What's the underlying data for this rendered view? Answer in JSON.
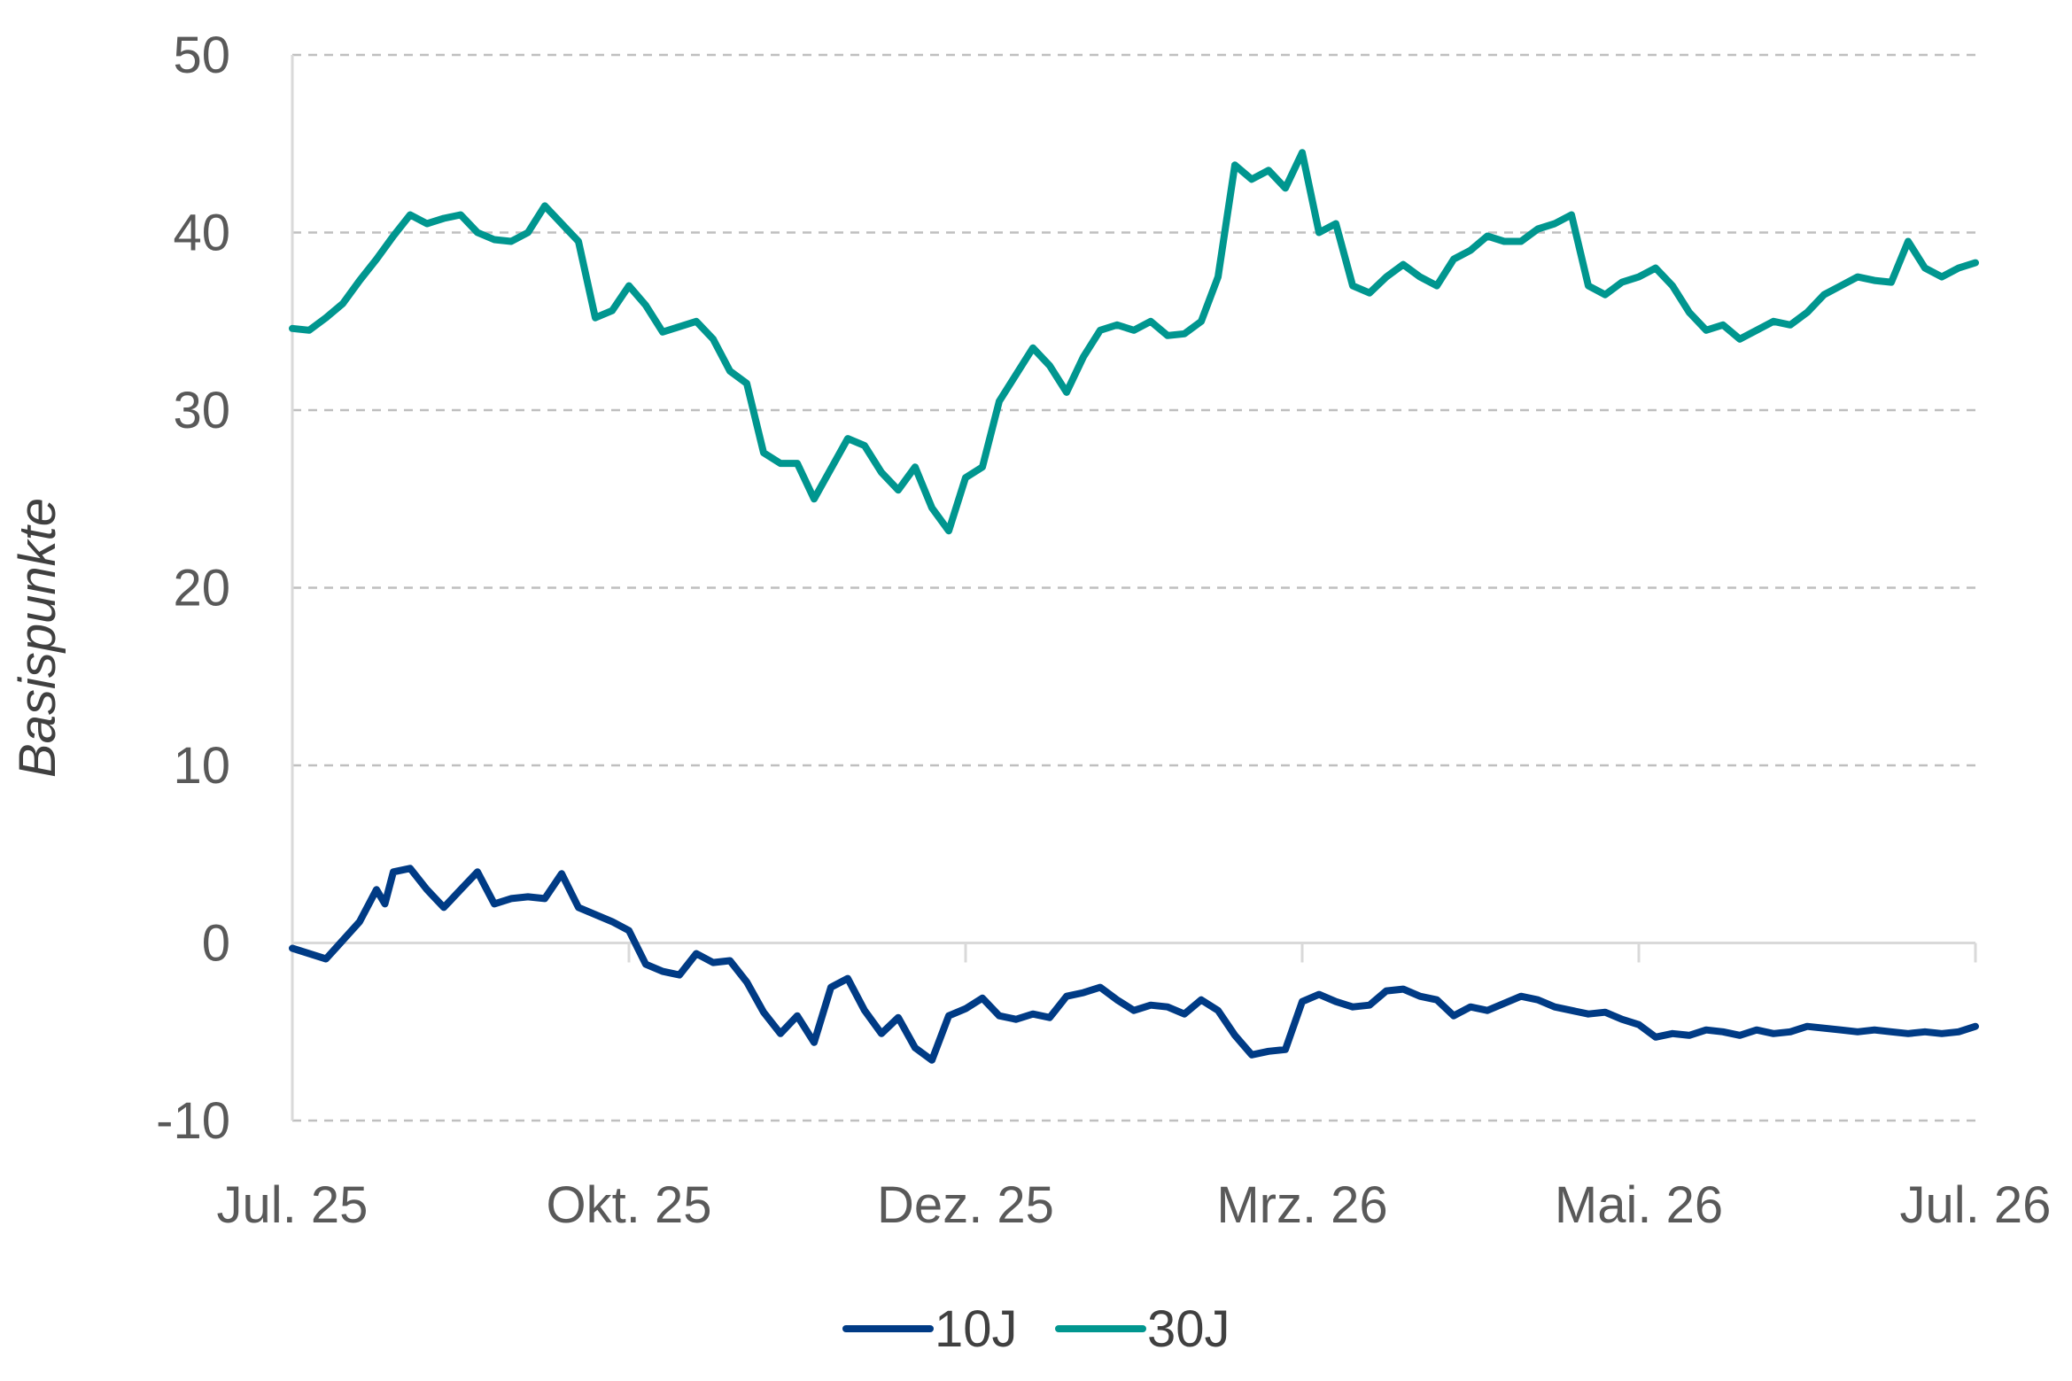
{
  "chart_data": {
    "type": "line",
    "title": "",
    "xlabel": "",
    "ylabel": "Basispunkte",
    "ylim": [
      -10,
      50
    ],
    "yticks": [
      -10,
      0,
      10,
      20,
      30,
      40,
      50
    ],
    "ytick_labels": [
      "-10",
      "0",
      "10",
      "20",
      "30",
      "40",
      "50"
    ],
    "xlim": [
      0,
      1
    ],
    "x_tick_positions": [
      0,
      0.2,
      0.4,
      0.6,
      0.8,
      1
    ],
    "x_tick_labels": [
      "Jul. 25",
      "Okt. 25",
      "Dez. 25",
      "Mrz. 26",
      "Mai. 26",
      "Jul. 26"
    ],
    "grid": "horizontal dashed",
    "legend_position": "bottom",
    "colors": {
      "10J": "#003B85",
      "30J": "#00968F"
    },
    "series": [
      {
        "name": "10J",
        "color": "#003B85",
        "x": [
          0,
          0.02,
          0.04,
          0.05,
          0.055,
          0.06,
          0.07,
          0.08,
          0.09,
          0.1,
          0.11,
          0.12,
          0.13,
          0.14,
          0.15,
          0.16,
          0.17,
          0.18,
          0.19,
          0.2,
          0.21,
          0.22,
          0.23,
          0.24,
          0.25,
          0.26,
          0.27,
          0.28,
          0.29,
          0.3,
          0.31,
          0.32,
          0.33,
          0.34,
          0.35,
          0.36,
          0.37,
          0.38,
          0.39,
          0.4,
          0.41,
          0.42,
          0.43,
          0.44,
          0.45,
          0.46,
          0.47,
          0.48,
          0.49,
          0.5,
          0.51,
          0.52,
          0.53,
          0.54,
          0.55,
          0.56,
          0.57,
          0.58,
          0.59,
          0.6,
          0.61,
          0.62,
          0.63,
          0.64,
          0.65,
          0.66,
          0.67,
          0.68,
          0.69,
          0.7,
          0.71,
          0.72,
          0.73,
          0.74,
          0.75,
          0.76,
          0.77,
          0.78,
          0.79,
          0.8,
          0.81,
          0.82,
          0.83,
          0.84,
          0.85,
          0.86,
          0.87,
          0.88,
          0.89,
          0.9,
          0.91,
          0.92,
          0.93,
          0.94,
          0.95,
          0.96,
          0.97,
          0.98,
          0.99,
          1
        ],
        "values": [
          -0.3,
          -0.9,
          1.2,
          3.0,
          2.2,
          4.0,
          4.2,
          3.0,
          2.0,
          3.0,
          4.0,
          2.2,
          2.5,
          2.6,
          2.5,
          3.9,
          2.0,
          1.6,
          1.2,
          0.7,
          -1.2,
          -1.6,
          -1.8,
          -0.6,
          -1.1,
          -1.0,
          -2.2,
          -3.9,
          -5.1,
          -4.1,
          -5.6,
          -2.5,
          -2.0,
          -3.8,
          -5.1,
          -4.2,
          -5.9,
          -6.6,
          -4.1,
          -3.7,
          -3.1,
          -4.1,
          -4.3,
          -4.0,
          -4.2,
          -3.0,
          -2.8,
          -2.5,
          -3.2,
          -3.8,
          -3.5,
          -3.6,
          -4.0,
          -3.2,
          -3.8,
          -5.2,
          -6.3,
          -6.1,
          -6.0,
          -3.3,
          -2.9,
          -3.3,
          -3.6,
          -3.5,
          -2.7,
          -2.6,
          -3.0,
          -3.2,
          -4.1,
          -3.6,
          -3.8,
          -3.4,
          -3.0,
          -3.2,
          -3.6,
          -3.8,
          -4.0,
          -3.9,
          -4.3,
          -4.6,
          -5.3,
          -5.1,
          -5.2,
          -4.9,
          -5.0,
          -5.2,
          -4.9,
          -5.1,
          -5.0,
          -4.7,
          -4.8,
          -4.9,
          -5.0,
          -4.9,
          -5.0,
          -5.1,
          -5.0,
          -5.1,
          -5.0,
          -4.7
        ]
      },
      {
        "name": "30J",
        "color": "#00968F",
        "x": [
          0,
          0.01,
          0.02,
          0.03,
          0.04,
          0.05,
          0.06,
          0.07,
          0.08,
          0.09,
          0.1,
          0.11,
          0.12,
          0.13,
          0.14,
          0.15,
          0.16,
          0.17,
          0.18,
          0.19,
          0.2,
          0.21,
          0.22,
          0.23,
          0.24,
          0.25,
          0.26,
          0.27,
          0.28,
          0.29,
          0.3,
          0.31,
          0.32,
          0.33,
          0.34,
          0.35,
          0.36,
          0.37,
          0.38,
          0.39,
          0.4,
          0.41,
          0.42,
          0.43,
          0.44,
          0.45,
          0.46,
          0.47,
          0.48,
          0.49,
          0.5,
          0.51,
          0.52,
          0.53,
          0.54,
          0.55,
          0.56,
          0.57,
          0.58,
          0.59,
          0.6,
          0.61,
          0.62,
          0.63,
          0.64,
          0.65,
          0.66,
          0.67,
          0.68,
          0.69,
          0.7,
          0.71,
          0.72,
          0.73,
          0.74,
          0.75,
          0.76,
          0.77,
          0.78,
          0.79,
          0.8,
          0.81,
          0.82,
          0.83,
          0.84,
          0.85,
          0.86,
          0.87,
          0.88,
          0.89,
          0.9,
          0.91,
          0.92,
          0.93,
          0.94,
          0.95,
          0.96,
          0.97,
          0.98,
          0.99,
          1
        ],
        "values": [
          34.6,
          34.5,
          35.2,
          36.0,
          37.3,
          38.5,
          39.8,
          41.0,
          40.5,
          40.8,
          41.0,
          40.0,
          39.6,
          39.5,
          40.0,
          41.5,
          40.5,
          39.5,
          35.2,
          35.6,
          37.0,
          35.9,
          34.4,
          34.7,
          35.0,
          34.0,
          32.2,
          31.5,
          27.6,
          27.0,
          27.0,
          25.0,
          26.7,
          28.4,
          28.0,
          26.5,
          25.5,
          26.8,
          24.5,
          23.2,
          26.2,
          26.8,
          30.5,
          32.0,
          33.5,
          32.5,
          31.0,
          33.0,
          34.5,
          34.8,
          34.5,
          35.0,
          34.2,
          34.3,
          35.0,
          37.5,
          43.8,
          43.0,
          43.5,
          42.5,
          44.5,
          40.0,
          40.5,
          37.0,
          36.6,
          37.5,
          38.2,
          37.5,
          37.0,
          38.5,
          39.0,
          39.8,
          39.5,
          39.5,
          40.2,
          40.5,
          41.0,
          37.0,
          36.5,
          37.2,
          37.5,
          38.0,
          37.0,
          35.5,
          34.5,
          34.8,
          34.0,
          34.5,
          35.0,
          34.8,
          35.5,
          36.5,
          37.0,
          37.5,
          37.3,
          37.2,
          39.5,
          38.0,
          37.5,
          38.0,
          38.3
        ]
      }
    ]
  }
}
